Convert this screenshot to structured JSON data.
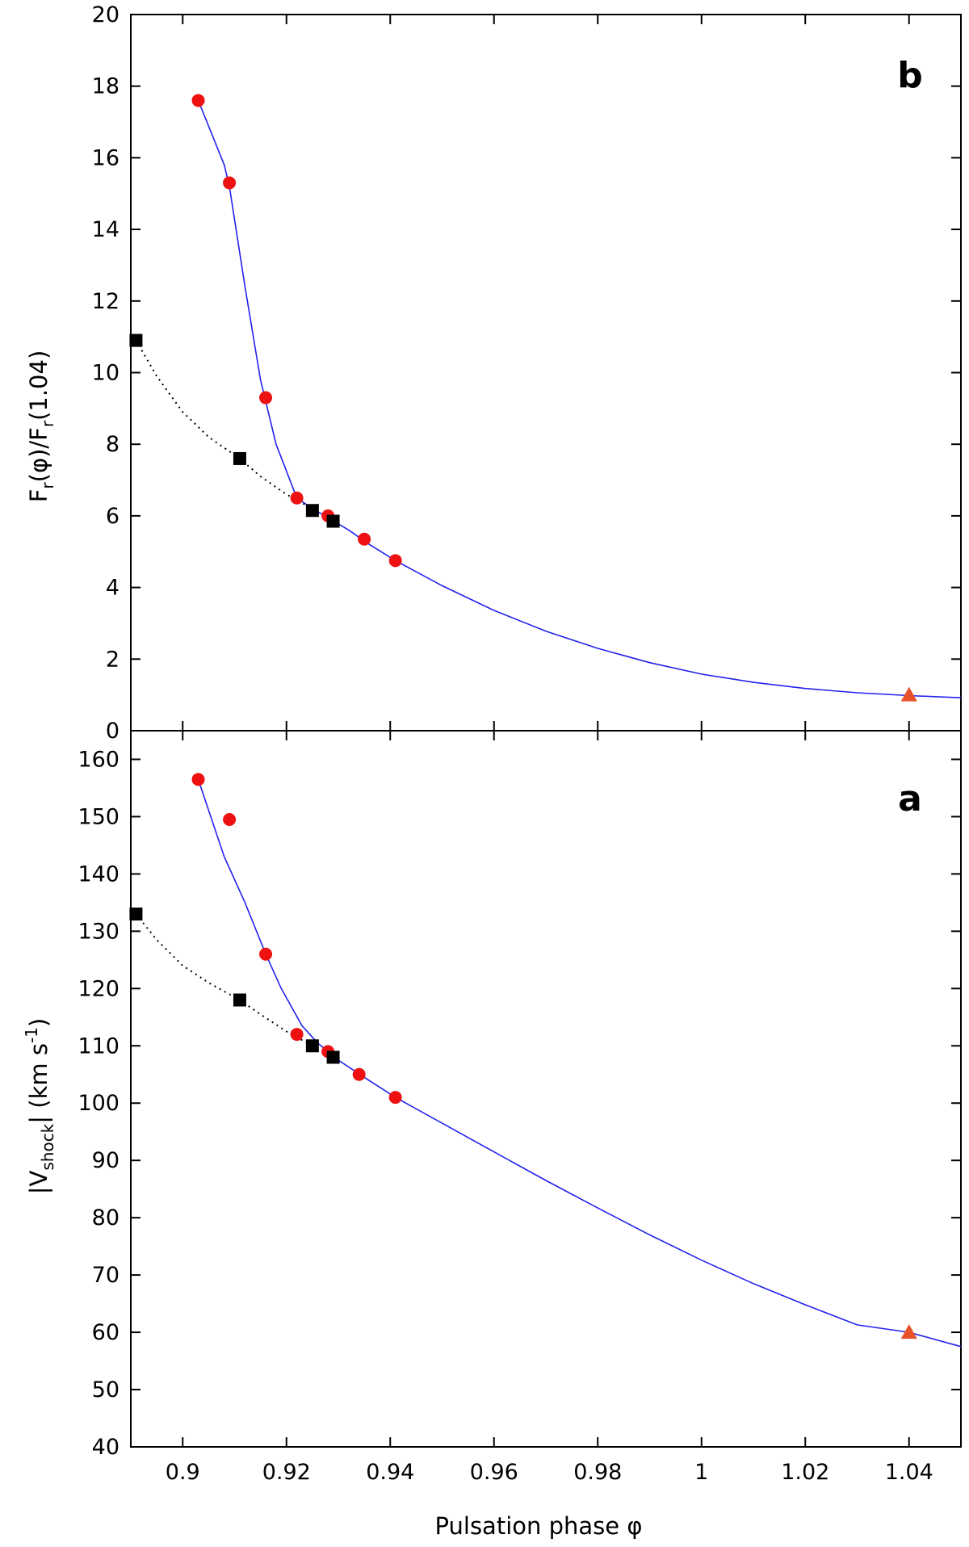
{
  "chart_data": [
    {
      "panel": "b",
      "type": "line",
      "ylabel": {
        "p1": "F",
        "s1": "r",
        "p2": "(φ)/F",
        "s2": "r",
        "p3": "(1.04)"
      },
      "xlim": [
        0.89,
        1.05
      ],
      "ylim": [
        0,
        20
      ],
      "yticks": [
        0,
        2,
        4,
        6,
        8,
        10,
        12,
        14,
        16,
        18,
        20
      ],
      "ytick_labels": [
        "0",
        "2",
        "4",
        "6",
        "8",
        "10",
        "12",
        "14",
        "16",
        "18",
        "20"
      ],
      "series": [
        {
          "name": "fit",
          "style": "solid",
          "color": "#2222ee",
          "x": [
            0.903,
            0.908,
            0.909,
            0.912,
            0.915,
            0.918,
            0.922,
            0.925,
            0.928,
            0.932,
            0.936,
            0.941,
            0.95,
            0.96,
            0.97,
            0.98,
            0.99,
            1.0,
            1.01,
            1.02,
            1.03,
            1.04,
            1.05
          ],
          "y": [
            17.6,
            15.8,
            15.2,
            12.4,
            9.8,
            8.0,
            6.5,
            6.2,
            5.95,
            5.6,
            5.2,
            4.75,
            4.05,
            3.36,
            2.78,
            2.3,
            1.9,
            1.58,
            1.35,
            1.18,
            1.06,
            0.98,
            0.92
          ]
        },
        {
          "name": "connector",
          "style": "dotted",
          "color": "#000000",
          "x": [
            0.891,
            0.895,
            0.9,
            0.905,
            0.911,
            0.915,
            0.92,
            0.925
          ],
          "y": [
            10.9,
            9.9,
            8.9,
            8.2,
            7.6,
            7.1,
            6.6,
            6.2
          ]
        },
        {
          "name": "red points",
          "marker": "circle",
          "color": "#ee1111",
          "x": [
            0.903,
            0.909,
            0.916,
            0.922,
            0.928,
            0.935,
            0.941
          ],
          "y": [
            17.6,
            15.3,
            9.3,
            6.5,
            6.0,
            5.35,
            4.75
          ]
        },
        {
          "name": "black squares",
          "marker": "square",
          "color": "#000000",
          "x": [
            0.891,
            0.911,
            0.925,
            0.929
          ],
          "y": [
            10.9,
            7.6,
            6.15,
            5.85
          ]
        },
        {
          "name": "triangle",
          "marker": "triangle",
          "color": "#e8502a",
          "x": [
            1.04
          ],
          "y": [
            1.0
          ]
        }
      ]
    },
    {
      "panel": "a",
      "type": "line",
      "ylabel": {
        "p1": "|V",
        "s1": "shock",
        "p2": "| (km s",
        "sup": "-1",
        "p3": ")"
      },
      "xlabel": "Pulsation phase φ",
      "xlim": [
        0.89,
        1.05
      ],
      "ylim": [
        40,
        165
      ],
      "xticks": [
        0.9,
        0.92,
        0.94,
        0.96,
        0.98,
        1.0,
        1.02,
        1.04
      ],
      "xtick_labels": [
        "0.9",
        "0.92",
        "0.94",
        "0.96",
        "0.98",
        "1",
        "1.02",
        "1.04"
      ],
      "yticks": [
        40,
        50,
        60,
        70,
        80,
        90,
        100,
        110,
        120,
        130,
        140,
        150,
        160
      ],
      "ytick_labels": [
        "40",
        "50",
        "60",
        "70",
        "80",
        "90",
        "100",
        "110",
        "120",
        "130",
        "140",
        "150",
        "160"
      ],
      "series": [
        {
          "name": "fit",
          "style": "solid",
          "color": "#2222ee",
          "x": [
            0.903,
            0.908,
            0.912,
            0.916,
            0.919,
            0.923,
            0.926,
            0.93,
            0.935,
            0.941,
            0.95,
            0.96,
            0.97,
            0.98,
            0.99,
            1.0,
            1.01,
            1.02,
            1.03,
            1.04,
            1.05
          ],
          "y": [
            156.5,
            143.0,
            135.0,
            126.0,
            120.0,
            113.5,
            110.5,
            107.5,
            104.5,
            101.0,
            96.5,
            91.5,
            86.5,
            81.7,
            77.0,
            72.6,
            68.5,
            64.8,
            61.3,
            60.0,
            57.5
          ]
        },
        {
          "name": "connector",
          "style": "dotted",
          "color": "#000000",
          "x": [
            0.891,
            0.895,
            0.9,
            0.905,
            0.911,
            0.915,
            0.92,
            0.925
          ],
          "y": [
            133.0,
            128.5,
            124.0,
            121.0,
            118.0,
            115.5,
            112.5,
            110.0
          ]
        },
        {
          "name": "red points",
          "marker": "circle",
          "color": "#ee1111",
          "x": [
            0.903,
            0.909,
            0.916,
            0.922,
            0.928,
            0.934,
            0.941
          ],
          "y": [
            156.5,
            149.5,
            126.0,
            112.0,
            109.0,
            105.0,
            101.0
          ]
        },
        {
          "name": "black squares",
          "marker": "square",
          "color": "#000000",
          "x": [
            0.891,
            0.911,
            0.925,
            0.929
          ],
          "y": [
            133.0,
            118.0,
            110.0,
            108.0
          ]
        },
        {
          "name": "triangle",
          "marker": "triangle",
          "color": "#e8502a",
          "x": [
            1.04
          ],
          "y": [
            60.0
          ]
        }
      ]
    }
  ]
}
